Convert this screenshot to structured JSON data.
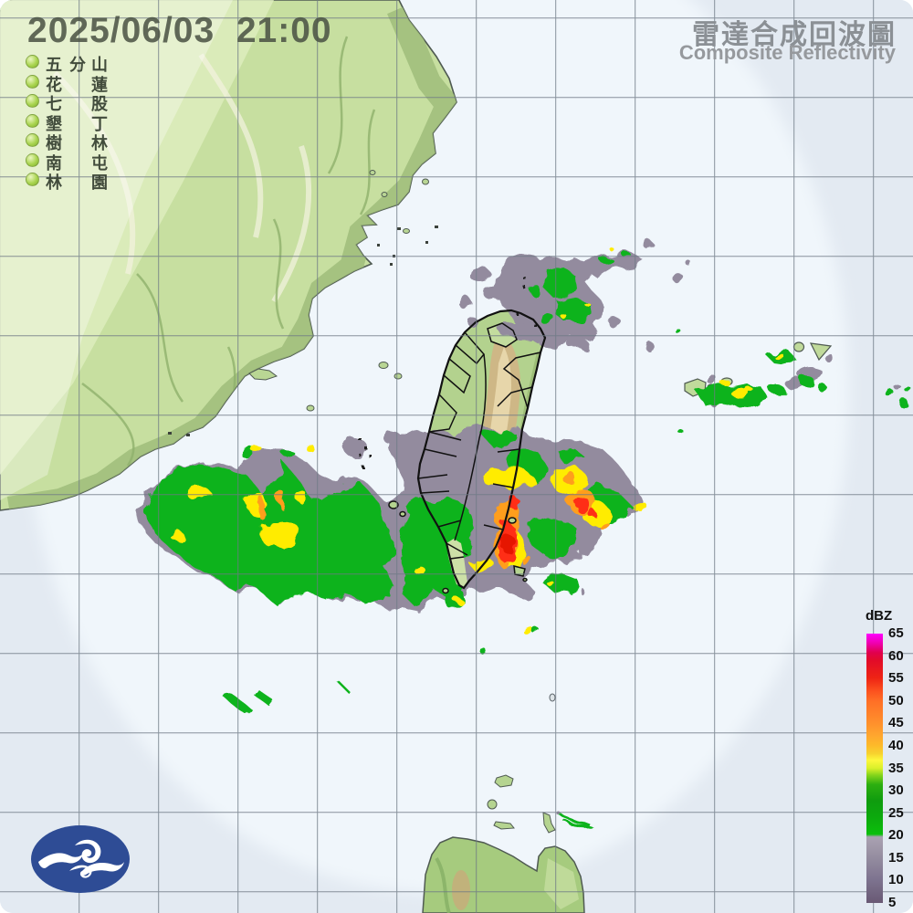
{
  "header": {
    "datetime": "2025/06/03  21:00"
  },
  "stations": {
    "items": [
      {
        "chars": [
          "五",
          "分",
          "山"
        ]
      },
      {
        "chars": [
          "花",
          "",
          "蓮"
        ]
      },
      {
        "chars": [
          "七",
          "",
          "股"
        ]
      },
      {
        "chars": [
          "墾",
          "",
          "丁"
        ]
      },
      {
        "chars": [
          "樹",
          "",
          "林"
        ]
      },
      {
        "chars": [
          "南",
          "",
          "屯"
        ]
      },
      {
        "chars": [
          "林",
          "",
          "園"
        ]
      }
    ]
  },
  "title": {
    "zh": "雷達合成回波圖",
    "en": "Composite Reflectivity"
  },
  "colorbar": {
    "unit": "dBZ",
    "ticks": [
      "65",
      "60",
      "55",
      "50",
      "45",
      "40",
      "35",
      "30",
      "25",
      "20",
      "15",
      "10",
      "5"
    ],
    "gradient_top_to_bottom": [
      "#ff00fe",
      "#e1004e",
      "#ee2414",
      "#ff6f26",
      "#ff8f2c",
      "#fdba2a",
      "#fdf83c",
      "#2daf10",
      "#0bbf0c",
      "#aaa2b2",
      "#695974"
    ]
  },
  "colors": {
    "sea_inside_range": "#f0f6fb",
    "sea_outside_range": "#e3eaf2",
    "grid_line": "#6f7a85",
    "land_china": "#c7dfa0",
    "land_taiwan_lowland": "#b3d28e",
    "land_taiwan_mountain": "#d0b586",
    "echo_gray": "#938b9e",
    "echo_green": "#0db31a",
    "echo_yellow": "#ffec00",
    "echo_orange": "#ff9e1e",
    "echo_red": "#ff2d12",
    "logo_blue": "#2e4c95",
    "datetime_text": "#485042",
    "title_text": "#8b9095"
  }
}
